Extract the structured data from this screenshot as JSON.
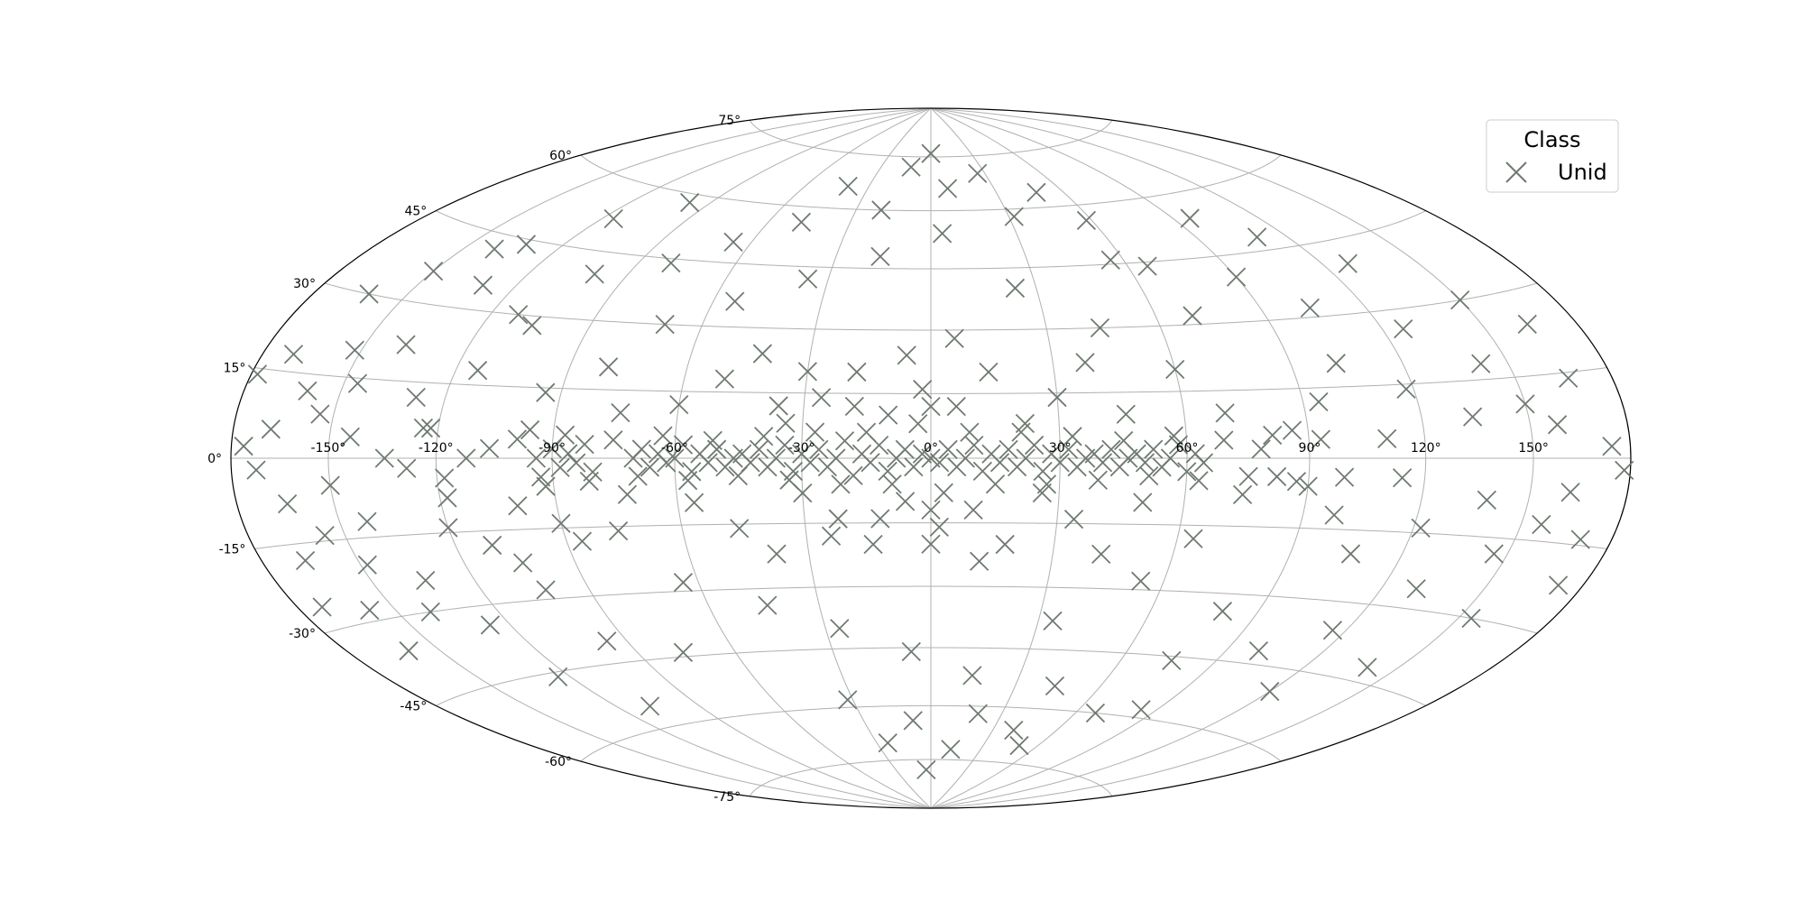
{
  "chart_data": {
    "type": "scatter",
    "projection": "hammer-aitoff",
    "title": "",
    "xlabel": "",
    "ylabel": "",
    "grid": true,
    "xlim": [
      -180,
      180
    ],
    "ylim": [
      -90,
      90
    ],
    "longitude_ticks": [
      "-150°",
      "-120°",
      "-90°",
      "-60°",
      "-30°",
      "0°",
      "30°",
      "60°",
      "90°",
      "120°",
      "150°"
    ],
    "latitude_ticks": [
      "-75°",
      "-60°",
      "-45°",
      "-30°",
      "-15°",
      "0°",
      "15°",
      "30°",
      "45°",
      "60°",
      "75°"
    ],
    "legend": {
      "title": "Class",
      "placement": "top-right",
      "entries": [
        "Unid"
      ]
    },
    "series": [
      {
        "name": "Unid",
        "marker": "x",
        "color": "#6f7a70",
        "points": [
          [
            -176,
            2
          ],
          [
            -172,
            -2
          ],
          [
            -168,
            5
          ],
          [
            -164,
            -8
          ],
          [
            -160,
            12
          ],
          [
            -156,
            -14
          ],
          [
            -152,
            20
          ],
          [
            -148,
            -20
          ],
          [
            -170,
            18
          ],
          [
            -166,
            -18
          ],
          [
            -162,
            30
          ],
          [
            -158,
            -28
          ],
          [
            -154,
            8
          ],
          [
            -150,
            -5
          ],
          [
            -146,
            14
          ],
          [
            -142,
            -12
          ],
          [
            -138,
            22
          ],
          [
            -134,
            -24
          ],
          [
            -130,
            35
          ],
          [
            -126,
            -34
          ],
          [
            -122,
            6
          ],
          [
            -118,
            -8
          ],
          [
            -114,
            18
          ],
          [
            -110,
            -18
          ],
          [
            -106,
            28
          ],
          [
            -102,
            -28
          ],
          [
            -100,
            40
          ],
          [
            -96,
            -40
          ],
          [
            -140,
            -30
          ],
          [
            -132,
            44
          ],
          [
            -124,
            -46
          ],
          [
            -116,
            52
          ],
          [
            -108,
            -55
          ],
          [
            -98,
            58
          ],
          [
            -128,
            12
          ],
          [
            -120,
            -14
          ],
          [
            -112,
            30
          ],
          [
            -104,
            -22
          ],
          [
            -94,
            0
          ],
          [
            -90,
            2
          ],
          [
            -88,
            -2
          ],
          [
            -86,
            1
          ],
          [
            -84,
            -1
          ],
          [
            -82,
            3
          ],
          [
            -80,
            -3
          ],
          [
            -92,
            -6
          ],
          [
            -96,
            6
          ],
          [
            -100,
            -10
          ],
          [
            -90,
            -14
          ],
          [
            -94,
            14
          ],
          [
            -86,
            -18
          ],
          [
            -80,
            20
          ],
          [
            -76,
            -16
          ],
          [
            -74,
            10
          ],
          [
            -72,
            -8
          ],
          [
            -70,
            0
          ],
          [
            -68,
            2
          ],
          [
            -66,
            -2
          ],
          [
            -64,
            1
          ],
          [
            -62,
            -1
          ],
          [
            -60,
            0
          ],
          [
            -58,
            3
          ],
          [
            -56,
            -3
          ],
          [
            -54,
            1
          ],
          [
            -52,
            -1
          ],
          [
            -50,
            2
          ],
          [
            -48,
            -2
          ],
          [
            -46,
            0
          ],
          [
            -44,
            1
          ],
          [
            -42,
            -1
          ],
          [
            -40,
            2
          ],
          [
            -38,
            -2
          ],
          [
            -36,
            0
          ],
          [
            -34,
            3
          ],
          [
            -32,
            -3
          ],
          [
            -30,
            1
          ],
          [
            -28,
            -1
          ],
          [
            -26,
            2
          ],
          [
            -24,
            -2
          ],
          [
            -22,
            0
          ],
          [
            -20,
            4
          ],
          [
            -18,
            -4
          ],
          [
            -16,
            1
          ],
          [
            -14,
            -1
          ],
          [
            -12,
            3
          ],
          [
            -10,
            -3
          ],
          [
            -8,
            0
          ],
          [
            -6,
            2
          ],
          [
            -4,
            -2
          ],
          [
            -2,
            1
          ],
          [
            0,
            0
          ],
          [
            2,
            -1
          ],
          [
            4,
            2
          ],
          [
            6,
            -2
          ],
          [
            8,
            0
          ],
          [
            10,
            3
          ],
          [
            12,
            -3
          ],
          [
            14,
            1
          ],
          [
            16,
            -1
          ],
          [
            18,
            2
          ],
          [
            20,
            -2
          ],
          [
            22,
            0
          ],
          [
            24,
            3
          ],
          [
            26,
            -3
          ],
          [
            28,
            1
          ],
          [
            30,
            -1
          ],
          [
            32,
            2
          ],
          [
            34,
            -2
          ],
          [
            36,
            0
          ],
          [
            38,
            1
          ],
          [
            40,
            -1
          ],
          [
            42,
            2
          ],
          [
            44,
            -2
          ],
          [
            46,
            0
          ],
          [
            48,
            1
          ],
          [
            50,
            -1
          ],
          [
            52,
            2
          ],
          [
            54,
            -2
          ],
          [
            56,
            0
          ],
          [
            58,
            3
          ],
          [
            60,
            -3
          ],
          [
            62,
            1
          ],
          [
            64,
            -1
          ],
          [
            -60,
            12
          ],
          [
            -56,
            -10
          ],
          [
            -50,
            18
          ],
          [
            -46,
            -16
          ],
          [
            -42,
            24
          ],
          [
            -38,
            -22
          ],
          [
            -34,
            8
          ],
          [
            -30,
            -8
          ],
          [
            -26,
            14
          ],
          [
            -22,
            -14
          ],
          [
            -18,
            20
          ],
          [
            -14,
            -20
          ],
          [
            -10,
            10
          ],
          [
            -6,
            -10
          ],
          [
            -2,
            16
          ],
          [
            2,
            -16
          ],
          [
            6,
            12
          ],
          [
            10,
            -12
          ],
          [
            14,
            20
          ],
          [
            18,
            -20
          ],
          [
            22,
            8
          ],
          [
            26,
            -8
          ],
          [
            30,
            14
          ],
          [
            34,
            -14
          ],
          [
            38,
            22
          ],
          [
            42,
            -22
          ],
          [
            46,
            10
          ],
          [
            50,
            -10
          ],
          [
            -70,
            30
          ],
          [
            -64,
            -28
          ],
          [
            -54,
            36
          ],
          [
            -44,
            -34
          ],
          [
            -36,
            42
          ],
          [
            -26,
            -40
          ],
          [
            -16,
            48
          ],
          [
            -6,
            -46
          ],
          [
            4,
            54
          ],
          [
            14,
            -52
          ],
          [
            24,
            40
          ],
          [
            34,
            -38
          ],
          [
            44,
            30
          ],
          [
            54,
            -28
          ],
          [
            -80,
            44
          ],
          [
            -76,
            -44
          ],
          [
            -66,
            50
          ],
          [
            -48,
            56
          ],
          [
            -32,
            -58
          ],
          [
            -20,
            60
          ],
          [
            -8,
            -64
          ],
          [
            8,
            66
          ],
          [
            20,
            -62
          ],
          [
            32,
            58
          ],
          [
            44,
            -54
          ],
          [
            56,
            46
          ],
          [
            -12,
            72
          ],
          [
            12,
            -72
          ],
          [
            -24,
            -70
          ],
          [
            26,
            70
          ],
          [
            -40,
            66
          ],
          [
            40,
            -66
          ],
          [
            0,
            76
          ],
          [
            -4,
            -78
          ],
          [
            60,
            20
          ],
          [
            64,
            -18
          ],
          [
            70,
            10
          ],
          [
            74,
            -8
          ],
          [
            78,
            2
          ],
          [
            82,
            -4
          ],
          [
            86,
            6
          ],
          [
            90,
            -6
          ],
          [
            94,
            12
          ],
          [
            98,
            -12
          ],
          [
            102,
            20
          ],
          [
            106,
            -20
          ],
          [
            110,
            4
          ],
          [
            114,
            -4
          ],
          [
            118,
            14
          ],
          [
            122,
            -14
          ],
          [
            126,
            26
          ],
          [
            130,
            -26
          ],
          [
            134,
            8
          ],
          [
            138,
            -8
          ],
          [
            142,
            18
          ],
          [
            146,
            -18
          ],
          [
            150,
            30
          ],
          [
            154,
            -30
          ],
          [
            158,
            6
          ],
          [
            162,
            -6
          ],
          [
            166,
            14
          ],
          [
            170,
            -14
          ],
          [
            174,
            2
          ],
          [
            178,
            -2
          ],
          [
            70,
            32
          ],
          [
            80,
            -34
          ],
          [
            90,
            40
          ],
          [
            100,
            -42
          ],
          [
            110,
            48
          ],
          [
            120,
            -50
          ],
          [
            96,
            54
          ],
          [
            84,
            -58
          ],
          [
            104,
            32
          ],
          [
            116,
            -36
          ],
          [
            128,
            40
          ],
          [
            140,
            -42
          ],
          [
            150,
            10
          ],
          [
            156,
            -12
          ],
          [
            164,
            24
          ],
          [
            172,
            -22
          ],
          [
            66,
            44
          ],
          [
            76,
            -46
          ],
          [
            58,
            56
          ],
          [
            68,
            -60
          ],
          [
            48,
            64
          ],
          [
            50,
            -70
          ],
          [
            -150,
            36
          ],
          [
            -140,
            42
          ],
          [
            -160,
            -36
          ],
          [
            -172,
            -26
          ],
          [
            -178,
            14
          ],
          [
            -134,
            0
          ],
          [
            -128,
            -2
          ],
          [
            -144,
            4
          ],
          [
            -112,
            0
          ],
          [
            -106,
            2
          ],
          [
            -118,
            -4
          ],
          [
            -124,
            6
          ],
          [
            -36,
            12
          ],
          [
            -30,
            20
          ],
          [
            -24,
            -18
          ],
          [
            -18,
            12
          ],
          [
            -12,
            -14
          ],
          [
            -6,
            24
          ],
          [
            0,
            -20
          ],
          [
            6,
            28
          ],
          [
            12,
            -24
          ],
          [
            0,
            12
          ],
          [
            0,
            -12
          ],
          [
            -3,
            8
          ],
          [
            3,
            -8
          ],
          [
            -9,
            -6
          ],
          [
            9,
            6
          ],
          [
            -15,
            6
          ],
          [
            15,
            -6
          ],
          [
            -21,
            -6
          ],
          [
            21,
            6
          ],
          [
            -27,
            6
          ],
          [
            27,
            -6
          ],
          [
            -33,
            -5
          ],
          [
            33,
            5
          ],
          [
            -39,
            5
          ],
          [
            39,
            -5
          ],
          [
            -45,
            -4
          ],
          [
            45,
            4
          ],
          [
            -51,
            4
          ],
          [
            51,
            -4
          ],
          [
            -57,
            -5
          ],
          [
            57,
            5
          ],
          [
            -63,
            5
          ],
          [
            63,
            -5
          ],
          [
            -69,
            -4
          ],
          [
            69,
            4
          ],
          [
            -75,
            4
          ],
          [
            75,
            -4
          ],
          [
            -81,
            -5
          ],
          [
            81,
            5
          ],
          [
            -87,
            5
          ],
          [
            87,
            -5
          ],
          [
            -93,
            -4
          ],
          [
            93,
            4
          ],
          [
            -99,
            4
          ],
          [
            99,
            -4
          ]
        ]
      }
    ]
  }
}
